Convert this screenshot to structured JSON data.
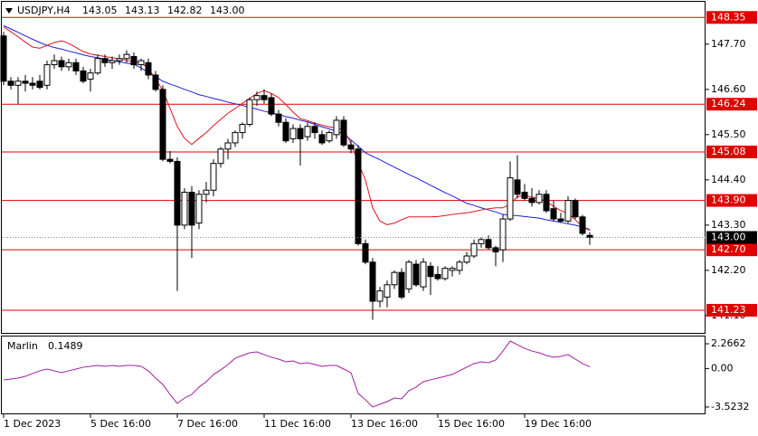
{
  "chart_data": {
    "type": "candlestick",
    "title": "USDJPY,H4",
    "current_price": {
      "value": 143.0,
      "label": "143.00"
    },
    "categories": [
      "1 Dec 2023",
      null,
      null,
      null,
      null,
      null,
      null,
      null,
      null,
      null,
      null,
      null,
      "5 Dec 16:00",
      null,
      null,
      null,
      null,
      null,
      null,
      null,
      null,
      null,
      null,
      null,
      "7 Dec 16:00",
      null,
      null,
      null,
      null,
      null,
      null,
      null,
      null,
      null,
      null,
      null,
      "11 Dec 16:00",
      null,
      null,
      null,
      null,
      null,
      null,
      null,
      null,
      null,
      null,
      null,
      "13 Dec 16:00",
      null,
      null,
      null,
      null,
      null,
      null,
      null,
      null,
      null,
      null,
      null,
      "15 Dec 16:00",
      null,
      null,
      null,
      null,
      null,
      null,
      null,
      null,
      null,
      null,
      null,
      "19 Dec 16:00",
      null,
      null,
      null,
      null,
      null,
      null,
      null,
      null,
      null
    ],
    "open": [
      147.9,
      146.8,
      146.7,
      146.8,
      146.75,
      146.8,
      146.7,
      147.2,
      147.3,
      147.15,
      147.25,
      147.05,
      146.85,
      147.0,
      147.35,
      147.25,
      147.3,
      147.35,
      147.4,
      147.2,
      147.25,
      146.95,
      146.6,
      144.9,
      144.85,
      143.3,
      144.1,
      143.35,
      144.05,
      144.15,
      144.8,
      145.15,
      145.3,
      145.55,
      145.75,
      146.35,
      146.45,
      146.4,
      146.0,
      145.8,
      145.4,
      145.65,
      145.45,
      145.7,
      145.5,
      145.35,
      145.5,
      145.85,
      145.25,
      145.15,
      142.85,
      142.4,
      141.45,
      141.55,
      141.85,
      142.15,
      141.75,
      142.35,
      141.8,
      142.3,
      142.1,
      142.0,
      142.2,
      142.2,
      142.4,
      142.55,
      142.85,
      142.95,
      142.75,
      142.7,
      143.45,
      144.4,
      144.1,
      143.95,
      143.85,
      144.05,
      143.7,
      143.45,
      143.4,
      143.9,
      143.5,
      143.05
    ],
    "high": [
      148.0,
      146.9,
      146.9,
      146.95,
      146.9,
      146.95,
      147.3,
      147.45,
      147.4,
      147.35,
      147.35,
      147.15,
      147.1,
      147.45,
      147.45,
      147.4,
      147.45,
      147.55,
      147.5,
      147.35,
      147.35,
      147.05,
      146.7,
      145.1,
      144.95,
      144.2,
      144.25,
      144.15,
      144.35,
      144.9,
      145.2,
      145.4,
      145.6,
      145.8,
      146.4,
      146.55,
      146.6,
      146.5,
      146.1,
      145.9,
      145.75,
      145.75,
      145.8,
      145.8,
      145.6,
      145.6,
      145.95,
      145.95,
      145.35,
      145.25,
      142.95,
      142.5,
      141.8,
      141.95,
      142.2,
      142.25,
      142.45,
      142.45,
      142.5,
      142.4,
      142.3,
      142.3,
      142.3,
      142.45,
      142.65,
      142.95,
      143.0,
      143.05,
      142.8,
      143.55,
      144.85,
      145.0,
      144.3,
      144.2,
      144.15,
      144.15,
      143.9,
      143.6,
      144.0,
      143.95,
      143.55,
      143.13
    ],
    "low": [
      146.7,
      146.6,
      146.25,
      146.55,
      146.6,
      146.6,
      146.6,
      147.1,
      147.05,
      147.05,
      146.95,
      146.75,
      146.55,
      146.95,
      147.15,
      147.1,
      147.2,
      147.25,
      147.1,
      147.05,
      146.85,
      146.55,
      144.85,
      144.8,
      141.7,
      143.2,
      142.5,
      143.2,
      143.85,
      144.0,
      144.7,
      144.9,
      145.2,
      145.4,
      145.7,
      146.2,
      146.25,
      145.95,
      145.7,
      145.3,
      145.3,
      144.75,
      145.35,
      145.4,
      145.25,
      145.3,
      145.4,
      145.2,
      145.05,
      142.8,
      142.35,
      141.0,
      141.3,
      141.3,
      141.75,
      141.5,
      141.65,
      141.8,
      141.7,
      141.6,
      141.95,
      141.95,
      142.05,
      142.1,
      142.35,
      142.5,
      142.75,
      142.7,
      142.3,
      142.4,
      143.4,
      143.95,
      143.9,
      143.75,
      143.8,
      143.6,
      143.4,
      143.35,
      143.35,
      143.45,
      143.05,
      142.82
    ],
    "close": [
      146.8,
      146.7,
      146.8,
      146.75,
      146.7,
      146.65,
      147.2,
      147.3,
      147.15,
      147.25,
      147.05,
      146.8,
      147.0,
      147.35,
      147.25,
      147.3,
      147.35,
      147.45,
      147.2,
      147.3,
      146.95,
      146.6,
      144.9,
      144.85,
      143.3,
      144.1,
      143.3,
      144.05,
      144.15,
      144.8,
      145.15,
      145.3,
      145.55,
      145.75,
      146.35,
      146.45,
      146.35,
      146.0,
      145.8,
      145.35,
      145.65,
      145.4,
      145.7,
      145.55,
      145.3,
      145.55,
      145.85,
      145.25,
      145.15,
      142.85,
      142.4,
      141.45,
      141.7,
      141.85,
      142.15,
      141.55,
      142.4,
      141.85,
      142.4,
      142.05,
      142.0,
      142.25,
      142.25,
      142.4,
      142.55,
      142.85,
      142.95,
      142.75,
      142.65,
      143.45,
      144.45,
      144.05,
      143.95,
      143.85,
      144.05,
      143.65,
      143.45,
      143.4,
      143.9,
      143.5,
      143.1,
      143.0
    ],
    "up_color": "#ffffff",
    "down_color": "#000000",
    "overlays": [
      {
        "color": "#1f1fd6",
        "values": [
          148.15,
          148.07,
          147.99,
          147.9,
          147.82,
          147.74,
          147.67,
          147.62,
          147.58,
          147.53,
          147.49,
          147.44,
          147.4,
          147.37,
          147.34,
          147.3,
          147.27,
          147.24,
          147.21,
          147.12,
          147.01,
          146.91,
          146.8,
          146.73,
          146.67,
          146.6,
          146.54,
          146.47,
          146.43,
          146.38,
          146.34,
          146.29,
          146.25,
          146.21,
          146.16,
          146.12,
          146.07,
          146.03,
          145.99,
          145.94,
          145.9,
          145.85,
          145.81,
          145.75,
          145.69,
          145.64,
          145.58,
          145.52,
          145.37,
          145.22,
          145.06,
          144.97,
          144.89,
          144.8,
          144.71,
          144.62,
          144.53,
          144.45,
          144.36,
          144.27,
          144.18,
          144.09,
          144.01,
          143.92,
          143.83,
          143.78,
          143.72,
          143.67,
          143.62,
          143.56,
          143.54,
          143.53,
          143.51,
          143.49,
          143.47,
          143.43,
          143.4,
          143.37,
          143.33,
          143.3,
          143.25,
          143.2
        ]
      },
      {
        "color": "#e0141e",
        "values": [
          148.12,
          148.0,
          147.88,
          147.75,
          147.63,
          147.6,
          147.67,
          147.74,
          147.78,
          147.72,
          147.62,
          147.52,
          147.46,
          147.43,
          147.4,
          147.37,
          147.34,
          147.31,
          147.27,
          147.25,
          147.11,
          146.85,
          146.58,
          146.14,
          145.7,
          145.41,
          145.26,
          145.41,
          145.55,
          145.72,
          145.87,
          146.02,
          146.14,
          146.26,
          146.38,
          146.5,
          146.57,
          146.5,
          146.4,
          146.23,
          146.05,
          145.89,
          145.84,
          145.78,
          145.73,
          145.69,
          145.66,
          145.62,
          145.29,
          144.82,
          144.4,
          143.72,
          143.4,
          143.31,
          143.35,
          143.43,
          143.5,
          143.5,
          143.5,
          143.5,
          143.51,
          143.53,
          143.56,
          143.58,
          143.6,
          143.63,
          143.67,
          143.7,
          143.72,
          143.72,
          143.81,
          143.99,
          144.02,
          143.98,
          143.96,
          143.86,
          143.76,
          143.65,
          143.59,
          143.43,
          143.26,
          143.17
        ]
      }
    ],
    "ylim": [
      140.68,
      148.73
    ],
    "yticks": [
      {
        "value": 147.7,
        "label": "147.70"
      },
      {
        "value": 146.6,
        "label": "146.60"
      },
      {
        "value": 145.5,
        "label": "145.50"
      },
      {
        "value": 144.4,
        "label": "144.40"
      },
      {
        "value": 143.3,
        "label": "143.30"
      },
      {
        "value": 142.2,
        "label": "142.20"
      },
      {
        "value": 141.1,
        "label": "141.10"
      }
    ],
    "levels": [
      148.35,
      146.24,
      145.08,
      {
        "value": 143.9,
        "label": "143.90"
      },
      {
        "value": 142.7,
        "label": "142.70"
      },
      141.23
    ],
    "level_color": "#e00000",
    "indicator": {
      "name": "Marlin",
      "color": "#a020a0",
      "values": [
        -1.04,
        -0.96,
        -0.88,
        -0.71,
        -0.46,
        -0.21,
        -0.05,
        -0.21,
        -0.38,
        -0.21,
        -0.05,
        0.12,
        0.2,
        0.28,
        0.2,
        0.28,
        0.2,
        0.28,
        0.28,
        0.2,
        -0.21,
        -0.88,
        -1.46,
        -2.37,
        -3.19,
        -2.7,
        -2.37,
        -1.7,
        -1.21,
        -0.55,
        -0.13,
        0.36,
        0.94,
        1.19,
        1.44,
        1.52,
        1.27,
        1.03,
        0.86,
        0.61,
        0.69,
        0.45,
        0.53,
        0.36,
        0.2,
        0.28,
        0.28,
        -0.05,
        -0.38,
        -2.28,
        -2.86,
        -3.52,
        -3.27,
        -3.03,
        -2.7,
        -2.78,
        -2.03,
        -1.7,
        -1.21,
        -1.04,
        -0.88,
        -0.71,
        -0.55,
        -0.21,
        0.12,
        0.45,
        0.61,
        0.53,
        0.78,
        1.6,
        2.51,
        2.18,
        1.85,
        1.6,
        1.44,
        1.19,
        1.03,
        1.11,
        1.27,
        0.86,
        0.45,
        0.1489
      ],
      "ylim": [
        -4.19,
        2.93
      ],
      "yticks": [
        2.2662,
        {
          "value": 0,
          "label": "0.00"
        },
        -3.5232
      ]
    }
  }
}
